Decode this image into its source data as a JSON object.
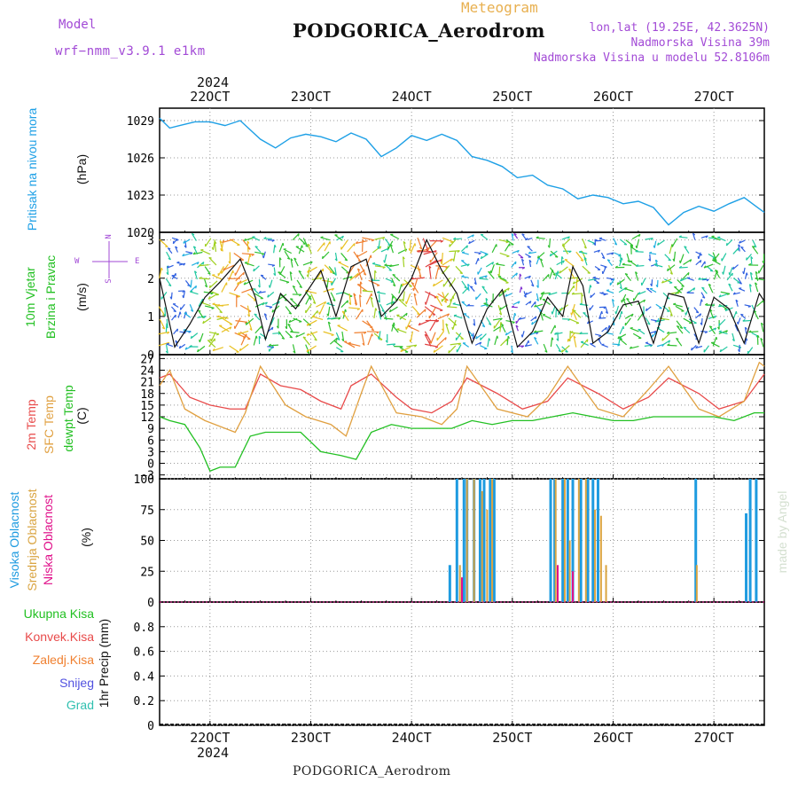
{
  "header": {
    "model_label": "Model",
    "model_value": "wrf−nmm_v3.9.1  e1km",
    "meteogram_label": "Meteogram",
    "station_title": "PODGORICA_Aerodrom",
    "lonlat": "lon,lat (19.25E, 42.3625N)",
    "elevation": "Nadmorska Visina 39m",
    "model_elevation": "Nadmorska Visina u modelu 52.8106m",
    "footer_station": "PODGORICA_Aerodrom",
    "credit": "made by Angel",
    "year_top": "2024",
    "year_bottom": "2024"
  },
  "colors": {
    "pressure": "#1ea0e6",
    "temp2m": "#e84a4a",
    "sfc_temp": "#e0a040",
    "dewpoint": "#22c022",
    "high_cloud": "#1e9be0",
    "mid_cloud": "#d9a441",
    "low_cloud": "#e0108a",
    "wind_label": "#22c022",
    "purple_text": "#a24ad6",
    "orange_text": "#e8b050"
  },
  "x_axis": {
    "tick_labels": [
      "22OCT",
      "23OCT",
      "24OCT",
      "25OCT",
      "26OCT",
      "27OCT"
    ],
    "tick_days": [
      22,
      23,
      24,
      25,
      26,
      27
    ],
    "xlim_days": [
      21.5,
      27.5
    ]
  },
  "panel_labels": {
    "pressure": {
      "name": "Pritisak na nivou mora",
      "unit": "(hPa)"
    },
    "wind": {
      "name1": "10m Vjetar",
      "name2": "Brzina i Pravac",
      "unit": "(m/s)",
      "compass_n": "N",
      "compass_s": "S",
      "compass_w": "W",
      "compass_e": "E"
    },
    "temp": {
      "t2m": "2m Temp",
      "sfc": "SFC Temp",
      "dew": "dewpt Temp",
      "unit": "(C)"
    },
    "cloud": {
      "high": "Visoka Oblacnost",
      "mid": "Srednja Oblacnost",
      "low": "Niska Oblacnost",
      "unit": "(%)"
    },
    "precip": {
      "unit": "1hr Precip (mm)",
      "legend": [
        "Ukupna Kisa",
        "Konvek.Kisa",
        "Zaledj.Kisa",
        "Snijeg",
        "Grad"
      ],
      "legend_colors": [
        "#22c022",
        "#e84a4a",
        "#f08030",
        "#5050e0",
        "#30c0b0"
      ]
    }
  },
  "chart_data": [
    {
      "type": "line",
      "name": "pressure",
      "ylim": [
        1020,
        1030
      ],
      "yticks": [
        1020,
        1023,
        1026,
        1029
      ],
      "series": [
        {
          "x": [
            21.5,
            21.6,
            21.7,
            21.85,
            22.0,
            22.15,
            22.3,
            22.5,
            22.65,
            22.8,
            22.95,
            23.1,
            23.25,
            23.4,
            23.55,
            23.7,
            23.85,
            24.0,
            24.15,
            24.3,
            24.45,
            24.6,
            24.75,
            24.9,
            25.05,
            25.2,
            25.35,
            25.5,
            25.65,
            25.8,
            25.95,
            26.1,
            26.25,
            26.4,
            26.55,
            26.7,
            26.85,
            27.0,
            27.15,
            27.3,
            27.45,
            27.5
          ],
          "y": [
            1029.2,
            1028.4,
            1028.6,
            1028.9,
            1028.9,
            1028.6,
            1029.0,
            1027.5,
            1026.8,
            1027.6,
            1027.9,
            1027.7,
            1027.3,
            1028.0,
            1027.5,
            1026.1,
            1026.8,
            1027.8,
            1027.4,
            1027.9,
            1027.4,
            1026.1,
            1025.8,
            1025.3,
            1024.4,
            1024.6,
            1023.8,
            1023.5,
            1022.7,
            1023.0,
            1022.8,
            1022.3,
            1022.5,
            1022.0,
            1020.6,
            1021.6,
            1022.1,
            1021.7,
            1022.3,
            1022.8,
            1021.9,
            1021.6
          ]
        }
      ]
    },
    {
      "type": "line",
      "name": "wind",
      "ylim": [
        0,
        3.2
      ],
      "yticks": [
        0,
        1,
        2,
        3
      ],
      "series": [
        {
          "x": [
            21.5,
            21.65,
            21.8,
            21.95,
            22.1,
            22.3,
            22.45,
            22.55,
            22.7,
            22.85,
            23.0,
            23.1,
            23.25,
            23.4,
            23.55,
            23.7,
            23.85,
            24.0,
            24.15,
            24.3,
            24.45,
            24.6,
            24.75,
            24.9,
            25.05,
            25.2,
            25.35,
            25.5,
            25.6,
            25.7,
            25.8,
            25.95,
            26.1,
            26.25,
            26.4,
            26.55,
            26.7,
            26.85,
            27.0,
            27.15,
            27.3,
            27.45,
            27.5
          ],
          "y": [
            2.0,
            0.2,
            0.8,
            1.5,
            1.9,
            2.5,
            1.5,
            0.4,
            1.6,
            1.2,
            1.8,
            2.2,
            1.0,
            2.3,
            2.5,
            1.0,
            1.4,
            2.0,
            3.0,
            2.2,
            1.6,
            0.3,
            1.2,
            1.7,
            0.2,
            0.6,
            1.5,
            1.0,
            2.3,
            1.8,
            0.3,
            0.6,
            1.3,
            1.4,
            0.3,
            1.6,
            1.5,
            0.3,
            1.5,
            1.2,
            0.3,
            1.6,
            1.4
          ]
        }
      ]
    },
    {
      "type": "line",
      "name": "temperature",
      "ylim": [
        -4,
        28
      ],
      "yticks": [
        -3,
        0,
        3,
        6,
        9,
        12,
        15,
        18,
        21,
        24,
        27
      ],
      "series": [
        {
          "key": "t2m",
          "x": [
            21.5,
            21.6,
            21.8,
            22.0,
            22.2,
            22.35,
            22.5,
            22.7,
            22.9,
            23.1,
            23.3,
            23.4,
            23.6,
            23.85,
            24.0,
            24.2,
            24.4,
            24.55,
            24.85,
            25.1,
            25.35,
            25.55,
            25.85,
            26.1,
            26.35,
            26.55,
            26.85,
            27.05,
            27.3,
            27.5
          ],
          "y": [
            22,
            23,
            17,
            15,
            14,
            14,
            23,
            20,
            19,
            16,
            14,
            20,
            23,
            17,
            14,
            13,
            16,
            22,
            18,
            14,
            16,
            22,
            18,
            14,
            17,
            22,
            18,
            14,
            16,
            23
          ]
        },
        {
          "key": "sfc",
          "x": [
            21.5,
            21.6,
            21.75,
            21.95,
            22.25,
            22.35,
            22.5,
            22.75,
            22.95,
            23.2,
            23.35,
            23.5,
            23.6,
            23.85,
            24.1,
            24.3,
            24.45,
            24.55,
            24.85,
            25.15,
            25.35,
            25.55,
            25.85,
            26.1,
            26.35,
            26.55,
            26.85,
            27.05,
            27.3,
            27.45,
            27.5
          ],
          "y": [
            20,
            24,
            14,
            11,
            8,
            13,
            25,
            15,
            12,
            10,
            7,
            18,
            25,
            13,
            12,
            10,
            14,
            25,
            14,
            12,
            17,
            25,
            14,
            12,
            19,
            25,
            14,
            12,
            16,
            26,
            25
          ]
        },
        {
          "key": "dew",
          "x": [
            21.5,
            21.6,
            21.75,
            21.9,
            22.0,
            22.1,
            22.25,
            22.4,
            22.55,
            22.75,
            22.9,
            23.1,
            23.3,
            23.45,
            23.6,
            23.8,
            24.0,
            24.2,
            24.4,
            24.6,
            24.8,
            25.0,
            25.2,
            25.4,
            25.6,
            25.8,
            26.0,
            26.2,
            26.4,
            26.6,
            26.8,
            27.0,
            27.2,
            27.4,
            27.5
          ],
          "y": [
            12,
            11,
            10,
            4,
            -2,
            -1,
            -1,
            7,
            8,
            8,
            8,
            3,
            2,
            1,
            8,
            10,
            9,
            9,
            9,
            11,
            10,
            11,
            11,
            12,
            13,
            12,
            11,
            11,
            12,
            12,
            12,
            12,
            11,
            13,
            13
          ]
        }
      ]
    },
    {
      "type": "bar",
      "name": "cloud_cover",
      "ylim": [
        0,
        100
      ],
      "yticks": [
        0,
        25,
        50,
        75,
        100
      ],
      "series": [
        {
          "key": "high",
          "x": [
            24.38,
            24.45,
            24.52,
            24.55,
            24.62,
            24.68,
            24.72,
            24.78,
            24.82,
            25.38,
            25.42,
            25.5,
            25.55,
            25.6,
            25.68,
            25.75,
            25.8,
            25.85,
            26.82,
            27.32,
            27.36,
            27.42
          ],
          "values": [
            30,
            100,
            100,
            100,
            100,
            100,
            100,
            100,
            100,
            100,
            100,
            100,
            100,
            100,
            100,
            100,
            100,
            100,
            100,
            72,
            100,
            100
          ]
        },
        {
          "key": "mid",
          "x": [
            24.48,
            24.55,
            24.62,
            24.7,
            24.75,
            24.8,
            25.43,
            25.52,
            25.57,
            25.66,
            25.73,
            25.82,
            25.88,
            25.93,
            26.83
          ],
          "values": [
            30,
            100,
            100,
            90,
            75,
            100,
            100,
            100,
            50,
            100,
            100,
            75,
            70,
            30,
            30
          ]
        },
        {
          "key": "low",
          "x": [
            24.5,
            25.45,
            25.6
          ],
          "values": [
            20,
            30,
            25
          ]
        }
      ]
    },
    {
      "type": "bar",
      "name": "precipitation",
      "ylim": [
        0,
        1.0
      ],
      "yticks": [
        0,
        0.2,
        0.4,
        0.6,
        0.8
      ],
      "series": [
        {
          "x": [],
          "values": []
        }
      ]
    }
  ]
}
